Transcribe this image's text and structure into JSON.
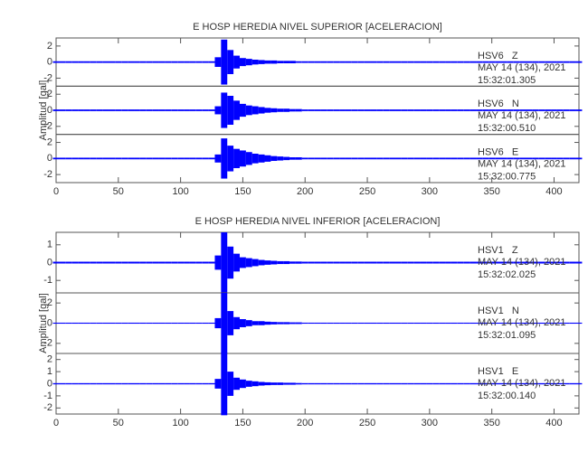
{
  "chart_data": [
    {
      "type": "seismogram",
      "title": "E HOSP HEREDIA NIVEL SUPERIOR [ACELERACION]",
      "ylabel": "Amplitud [gal]",
      "xlim": [
        0,
        420
      ],
      "xticks": [
        0,
        50,
        100,
        150,
        200,
        250,
        300,
        350,
        400
      ],
      "color": "#0000ff",
      "x": [
        0,
        5,
        10,
        15,
        20,
        25,
        30,
        35,
        40,
        45,
        50,
        55,
        60,
        65,
        70,
        75,
        80,
        85,
        90,
        95,
        100,
        105,
        110,
        115,
        120,
        125,
        130,
        135,
        140,
        145,
        150,
        155,
        160,
        165,
        170,
        175,
        180,
        185,
        190,
        195,
        200,
        205,
        210,
        215,
        220,
        225,
        230,
        235,
        240,
        245,
        250,
        255,
        260,
        265,
        270,
        275,
        280,
        285,
        290,
        295,
        300,
        305,
        310,
        315,
        320,
        325,
        330,
        335,
        340,
        345,
        350,
        355,
        360,
        365,
        370,
        375,
        380,
        385,
        390,
        395,
        400,
        405,
        410,
        415,
        420
      ],
      "series": [
        {
          "name": "HSV6   Z",
          "date": "MAY 14 (134), 2021",
          "time": "15:32:01.305",
          "ylim": [
            -3,
            3
          ],
          "yticks": [
            -2,
            0,
            2
          ],
          "values": [
            0.1,
            0.1,
            0.1,
            0.1,
            0.1,
            0.1,
            0.1,
            0.1,
            0.1,
            0.1,
            0.1,
            0.1,
            0.1,
            0.1,
            0.1,
            0.1,
            0.1,
            0.1,
            0.1,
            0.1,
            0.1,
            0.1,
            0.1,
            0.1,
            0.1,
            0.1,
            0.6,
            2.8,
            1.5,
            0.8,
            0.5,
            0.4,
            0.3,
            0.25,
            0.2,
            0.2,
            0.15,
            0.15,
            0.15,
            0.1,
            0.1,
            0.1,
            0.1,
            0.1,
            0.1,
            0.1,
            0.1,
            0.1,
            0.1,
            0.1,
            0.1,
            0.1,
            0.1,
            0.1,
            0.1,
            0.1,
            0.1,
            0.1,
            0.1,
            0.1,
            0.1,
            0.1,
            0.1,
            0.1,
            0.1,
            0.1,
            0.1,
            0.1,
            0.1,
            0.1,
            0.1,
            0.1,
            0.1,
            0.1,
            0.1,
            0.1,
            0.1,
            0.1,
            0.1,
            0.1,
            0.1,
            0.1,
            0.1,
            0.1,
            0.1
          ]
        },
        {
          "name": "HSV6   N",
          "date": "MAY 14 (134), 2021",
          "time": "15:32:00.510",
          "ylim": [
            -3,
            3
          ],
          "yticks": [
            -2,
            0,
            2
          ],
          "values": [
            0.1,
            0.1,
            0.1,
            0.1,
            0.1,
            0.1,
            0.1,
            0.1,
            0.1,
            0.1,
            0.1,
            0.1,
            0.1,
            0.1,
            0.1,
            0.1,
            0.1,
            0.1,
            0.1,
            0.1,
            0.1,
            0.1,
            0.1,
            0.1,
            0.1,
            0.1,
            0.5,
            2.2,
            1.8,
            1.2,
            0.8,
            0.6,
            0.5,
            0.4,
            0.3,
            0.25,
            0.2,
            0.2,
            0.15,
            0.15,
            0.1,
            0.1,
            0.1,
            0.1,
            0.1,
            0.1,
            0.1,
            0.1,
            0.1,
            0.1,
            0.1,
            0.1,
            0.1,
            0.1,
            0.1,
            0.1,
            0.1,
            0.1,
            0.1,
            0.1,
            0.1,
            0.1,
            0.1,
            0.1,
            0.1,
            0.1,
            0.1,
            0.1,
            0.1,
            0.1,
            0.1,
            0.1,
            0.1,
            0.1,
            0.1,
            0.1,
            0.1,
            0.1,
            0.1,
            0.1,
            0.1,
            0.1,
            0.1,
            0.1,
            0.1
          ]
        },
        {
          "name": "HSV6   E",
          "date": "MAY 14 (134), 2021",
          "time": "15:32:00.775",
          "ylim": [
            -3,
            3
          ],
          "yticks": [
            -2,
            0,
            2
          ],
          "values": [
            0.1,
            0.1,
            0.1,
            0.1,
            0.1,
            0.1,
            0.1,
            0.1,
            0.1,
            0.1,
            0.1,
            0.1,
            0.1,
            0.1,
            0.1,
            0.1,
            0.1,
            0.1,
            0.1,
            0.1,
            0.1,
            0.1,
            0.1,
            0.1,
            0.1,
            0.1,
            0.5,
            2.5,
            1.6,
            1.2,
            1.0,
            0.8,
            0.6,
            0.5,
            0.4,
            0.3,
            0.25,
            0.2,
            0.15,
            0.15,
            0.1,
            0.1,
            0.1,
            0.1,
            0.1,
            0.1,
            0.1,
            0.1,
            0.1,
            0.1,
            0.1,
            0.1,
            0.1,
            0.1,
            0.1,
            0.1,
            0.1,
            0.1,
            0.1,
            0.1,
            0.1,
            0.1,
            0.1,
            0.1,
            0.1,
            0.1,
            0.1,
            0.1,
            0.1,
            0.1,
            0.1,
            0.1,
            0.1,
            0.1,
            0.1,
            0.1,
            0.1,
            0.1,
            0.1,
            0.1,
            0.1,
            0.1,
            0.1,
            0.1,
            0.1
          ]
        }
      ]
    },
    {
      "type": "seismogram",
      "title": "E HOSP HEREDIA NIVEL INFERIOR [ACELERACION]",
      "ylabel": "Amplitud [gal]",
      "xlim": [
        0,
        420
      ],
      "xticks": [
        0,
        50,
        100,
        150,
        200,
        250,
        300,
        350,
        400
      ],
      "color": "#0000ff",
      "x": [
        0,
        5,
        10,
        15,
        20,
        25,
        30,
        35,
        40,
        45,
        50,
        55,
        60,
        65,
        70,
        75,
        80,
        85,
        90,
        95,
        100,
        105,
        110,
        115,
        120,
        125,
        130,
        135,
        140,
        145,
        150,
        155,
        160,
        165,
        170,
        175,
        180,
        185,
        190,
        195,
        200,
        205,
        210,
        215,
        220,
        225,
        230,
        235,
        240,
        245,
        250,
        255,
        260,
        265,
        270,
        275,
        280,
        285,
        290,
        295,
        300,
        305,
        310,
        315,
        320,
        325,
        330,
        335,
        340,
        345,
        350,
        355,
        360,
        365,
        370,
        375,
        380,
        385,
        390,
        395,
        400,
        405,
        410,
        415,
        420
      ],
      "series": [
        {
          "name": "HSV1   Z",
          "date": "MAY 14 (134), 2021",
          "time": "15:32:02.025",
          "ylim": [
            -1.7,
            1.7
          ],
          "yticks": [
            -1,
            0,
            1
          ],
          "values": [
            0.05,
            0.05,
            0.05,
            0.05,
            0.05,
            0.05,
            0.05,
            0.05,
            0.05,
            0.05,
            0.05,
            0.05,
            0.05,
            0.05,
            0.05,
            0.05,
            0.05,
            0.05,
            0.05,
            0.05,
            0.05,
            0.05,
            0.05,
            0.05,
            0.05,
            0.05,
            0.4,
            1.7,
            0.9,
            0.5,
            0.3,
            0.25,
            0.2,
            0.15,
            0.12,
            0.1,
            0.08,
            0.08,
            0.06,
            0.06,
            0.05,
            0.05,
            0.05,
            0.05,
            0.05,
            0.05,
            0.05,
            0.05,
            0.05,
            0.05,
            0.05,
            0.05,
            0.05,
            0.05,
            0.05,
            0.05,
            0.05,
            0.05,
            0.05,
            0.05,
            0.05,
            0.05,
            0.05,
            0.05,
            0.05,
            0.05,
            0.05,
            0.05,
            0.05,
            0.05,
            0.05,
            0.05,
            0.05,
            0.05,
            0.05,
            0.05,
            0.05,
            0.05,
            0.05,
            0.05,
            0.05,
            0.05,
            0.05,
            0.05,
            0.05
          ]
        },
        {
          "name": "HSV1   N",
          "date": "MAY 14 (134), 2021",
          "time": "15:32:01.095",
          "ylim": [
            -3,
            3
          ],
          "yticks": [
            -2,
            0,
            2
          ],
          "values": [
            0.05,
            0.05,
            0.05,
            0.05,
            0.05,
            0.05,
            0.05,
            0.05,
            0.05,
            0.05,
            0.05,
            0.05,
            0.05,
            0.05,
            0.05,
            0.05,
            0.05,
            0.05,
            0.05,
            0.05,
            0.05,
            0.05,
            0.05,
            0.05,
            0.05,
            0.05,
            0.5,
            3.0,
            1.2,
            0.6,
            0.4,
            0.3,
            0.2,
            0.2,
            0.15,
            0.12,
            0.1,
            0.1,
            0.08,
            0.08,
            0.05,
            0.05,
            0.05,
            0.05,
            0.05,
            0.05,
            0.05,
            0.05,
            0.05,
            0.05,
            0.05,
            0.05,
            0.05,
            0.05,
            0.05,
            0.05,
            0.05,
            0.05,
            0.05,
            0.05,
            0.05,
            0.05,
            0.05,
            0.05,
            0.05,
            0.05,
            0.05,
            0.05,
            0.05,
            0.05,
            0.05,
            0.05,
            0.05,
            0.05,
            0.05,
            0.05,
            0.05,
            0.05,
            0.05,
            0.05,
            0.05,
            0.05,
            0.05,
            0.05,
            0.05
          ]
        },
        {
          "name": "HSV1   E",
          "date": "MAY 14 (134), 2021",
          "time": "15:32:00.140",
          "ylim": [
            -2.5,
            2.5
          ],
          "yticks": [
            -2,
            -1,
            0,
            1,
            2
          ],
          "values": [
            0.05,
            0.05,
            0.05,
            0.05,
            0.05,
            0.05,
            0.05,
            0.05,
            0.05,
            0.05,
            0.05,
            0.05,
            0.05,
            0.05,
            0.05,
            0.05,
            0.05,
            0.05,
            0.05,
            0.05,
            0.05,
            0.05,
            0.05,
            0.05,
            0.05,
            0.05,
            0.4,
            2.6,
            1.0,
            0.5,
            0.35,
            0.25,
            0.2,
            0.15,
            0.12,
            0.1,
            0.1,
            0.08,
            0.08,
            0.06,
            0.05,
            0.05,
            0.05,
            0.05,
            0.05,
            0.05,
            0.05,
            0.05,
            0.05,
            0.05,
            0.05,
            0.05,
            0.05,
            0.05,
            0.05,
            0.05,
            0.05,
            0.05,
            0.05,
            0.05,
            0.05,
            0.05,
            0.05,
            0.05,
            0.05,
            0.05,
            0.05,
            0.05,
            0.05,
            0.05,
            0.05,
            0.05,
            0.05,
            0.05,
            0.05,
            0.05,
            0.05,
            0.05,
            0.05,
            0.05,
            0.05,
            0.05,
            0.05,
            0.05,
            0.05
          ]
        }
      ]
    }
  ]
}
